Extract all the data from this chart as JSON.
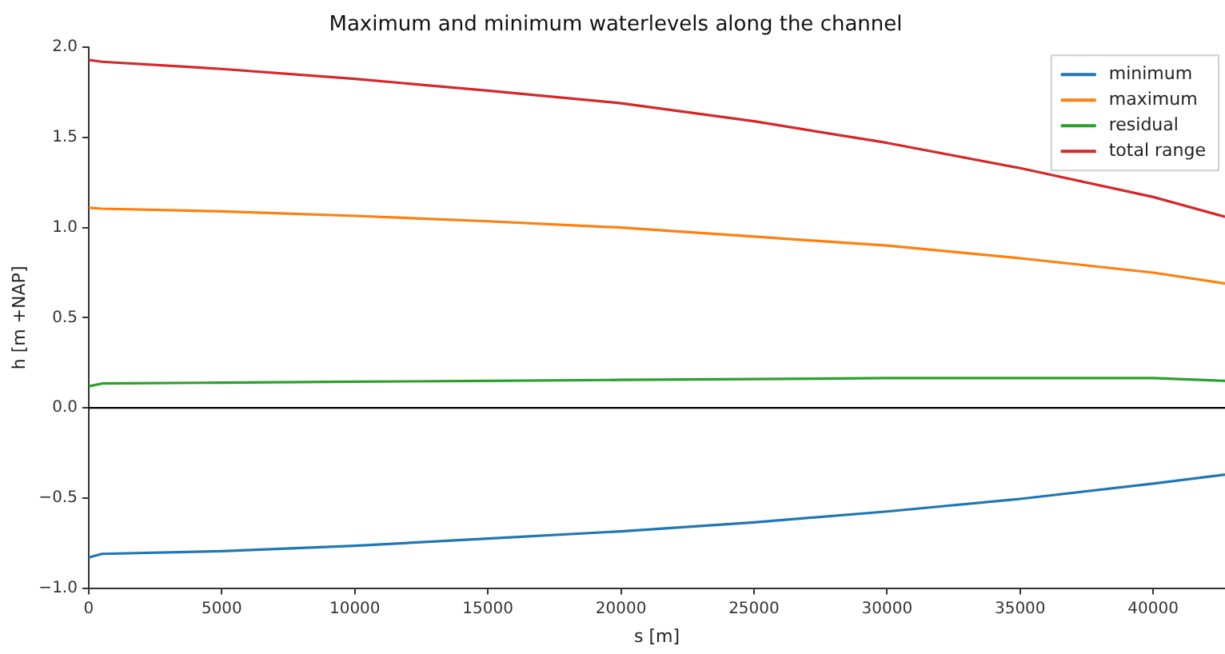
{
  "chart_data": {
    "type": "line",
    "title": "Maximum and minimum waterlevels along the channel",
    "xlabel": "s [m]",
    "ylabel": "h [m +NAP]",
    "xlim": [
      0,
      42700
    ],
    "ylim": [
      -1.0,
      2.0
    ],
    "xticks": [
      0,
      5000,
      10000,
      15000,
      20000,
      25000,
      30000,
      35000,
      40000
    ],
    "yticks": [
      {
        "value": -1.0,
        "label": "−1.0"
      },
      {
        "value": -0.5,
        "label": "−0.5"
      },
      {
        "value": 0.0,
        "label": "0.0"
      },
      {
        "value": 0.5,
        "label": "0.5"
      },
      {
        "value": 1.0,
        "label": "1.0"
      },
      {
        "value": 1.5,
        "label": "1.5"
      },
      {
        "value": 2.0,
        "label": "2.0"
      }
    ],
    "x": [
      0,
      500,
      5000,
      10000,
      15000,
      20000,
      25000,
      30000,
      35000,
      40000,
      42700
    ],
    "series": [
      {
        "name": "minimum",
        "color": "#1f77b4",
        "values": [
          -0.83,
          -0.81,
          -0.795,
          -0.765,
          -0.725,
          -0.685,
          -0.635,
          -0.575,
          -0.505,
          -0.42,
          -0.37
        ]
      },
      {
        "name": "maximum",
        "color": "#ff7f0e",
        "values": [
          1.11,
          1.105,
          1.09,
          1.065,
          1.035,
          1.0,
          0.95,
          0.9,
          0.83,
          0.75,
          0.69
        ]
      },
      {
        "name": "residual",
        "color": "#2ca02c",
        "values": [
          0.12,
          0.135,
          0.14,
          0.145,
          0.15,
          0.155,
          0.16,
          0.165,
          0.165,
          0.165,
          0.15
        ]
      },
      {
        "name": "total range",
        "color": "#d62728",
        "values": [
          1.93,
          1.92,
          1.88,
          1.825,
          1.76,
          1.69,
          1.59,
          1.47,
          1.33,
          1.17,
          1.06
        ]
      }
    ],
    "ref_lines": [
      {
        "axis": "y",
        "value": 0,
        "color": "#000000"
      }
    ],
    "legend": "top right",
    "grid": false
  }
}
